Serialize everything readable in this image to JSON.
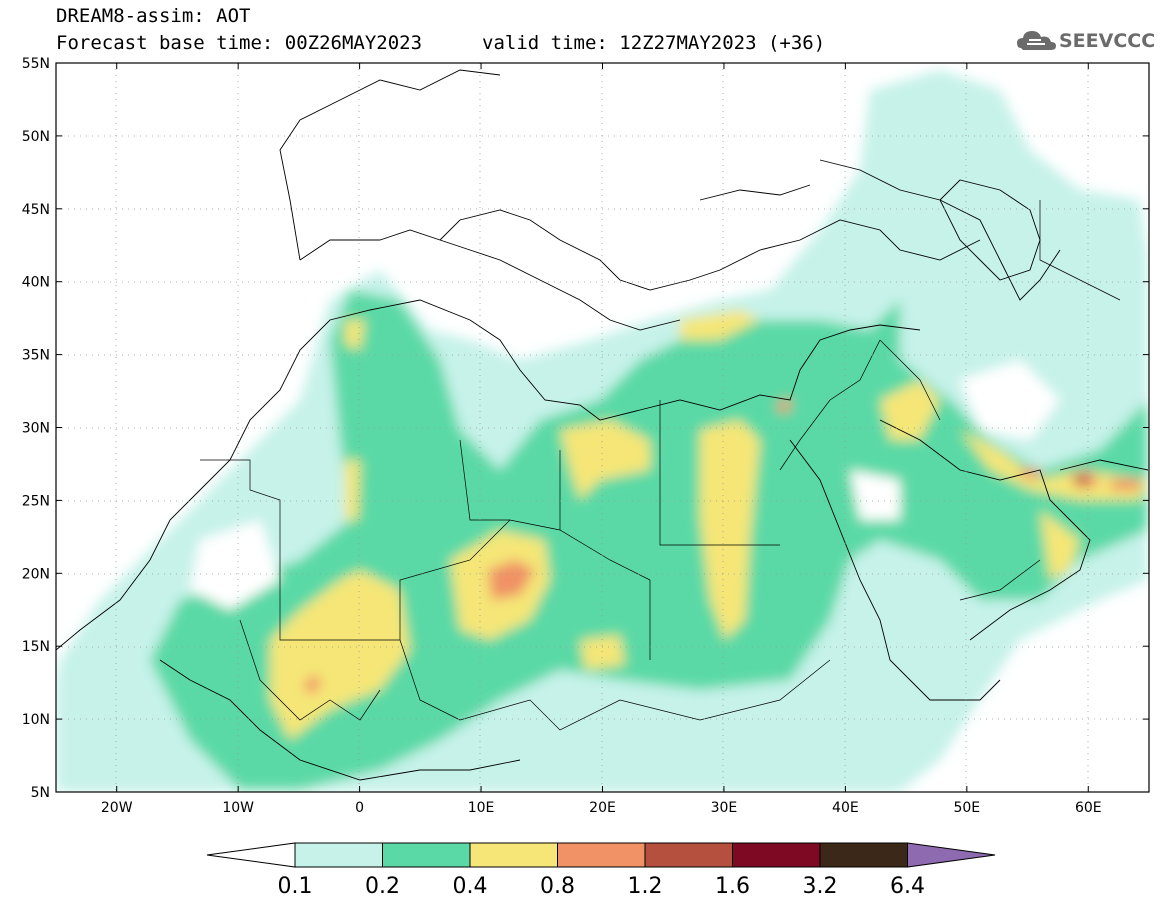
{
  "header": {
    "title": "DREAM8-assim: AOT",
    "base_time": "Forecast base time: 00Z26MAY2023",
    "valid_time": "valid time: 12Z27MAY2023 (+36)"
  },
  "logo": {
    "text": "SEEVCCC",
    "icon": "cloud-icon"
  },
  "map": {
    "lon_range": [
      -25,
      65
    ],
    "lat_range": [
      5,
      55
    ],
    "lat_labels": [
      "55N",
      "50N",
      "45N",
      "40N",
      "35N",
      "30N",
      "25N",
      "20N",
      "15N",
      "10N",
      "5N"
    ],
    "lon_labels": [
      "20W",
      "10W",
      "0",
      "10E",
      "20E",
      "30E",
      "40E",
      "50E",
      "60E"
    ],
    "grid": true
  },
  "colorbar": {
    "colors": [
      "#ffffff",
      "#c6f2e9",
      "#5ad9a6",
      "#f5e677",
      "#f09266",
      "#b5503e",
      "#7d0a22",
      "#3b2818",
      "#8e6ab0"
    ],
    "ticks": [
      "0.1",
      "0.2",
      "0.4",
      "0.8",
      "1.2",
      "1.6",
      "3.2",
      "6.4"
    ]
  }
}
